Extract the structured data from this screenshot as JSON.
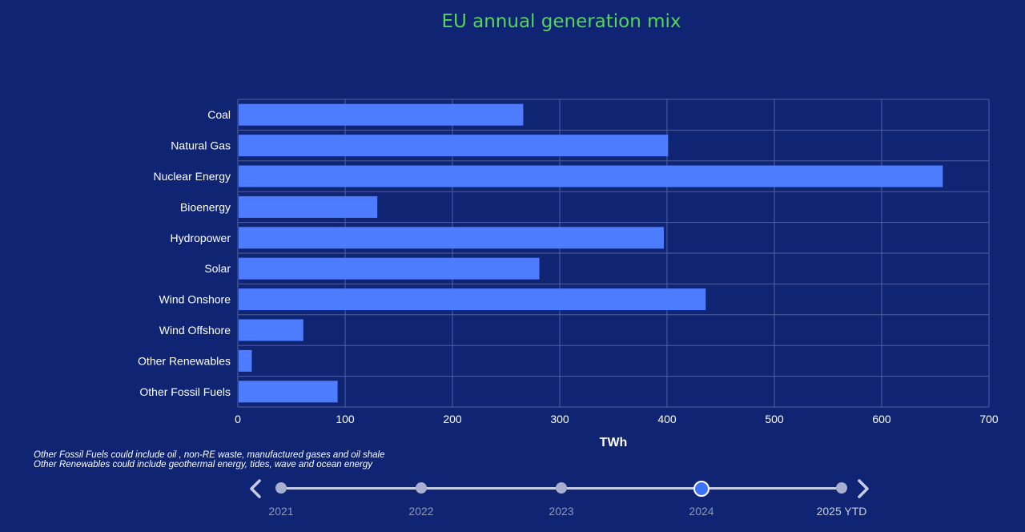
{
  "title": "EU annual generation mix",
  "chart_data": {
    "type": "bar",
    "orientation": "horizontal",
    "title": "EU annual generation mix",
    "xlabel": "TWh",
    "ylabel": "",
    "xlim": [
      0,
      700
    ],
    "xticks": [
      0,
      100,
      200,
      300,
      400,
      500,
      600,
      700
    ],
    "grid": true,
    "categories": [
      "Coal",
      "Natural Gas",
      "Nuclear Energy",
      "Bioenergy",
      "Hydropower",
      "Solar",
      "Wind Onshore",
      "Wind Offshore",
      "Other Renewables",
      "Other Fossil Fuels"
    ],
    "values": [
      266,
      401,
      657,
      130,
      397,
      281,
      436,
      61,
      13,
      93
    ],
    "bar_color": "#4d7cff"
  },
  "footnotes": [
    "Other Fossil Fuels could include oil , non-RE waste, manufactured gases and oil shale",
    "Other Renewables could include geothermal energy, tides, wave and ocean energy"
  ],
  "timeline": {
    "years": [
      "2021",
      "2022",
      "2023",
      "2024",
      "2025 YTD"
    ],
    "selected": "2024",
    "prev_icon": "chevron-left-icon",
    "next_icon": "chevron-right-icon"
  },
  "colors": {
    "background": "#0f2473",
    "title": "#58d35c",
    "bar": "#4d7cff",
    "active_dot": "#3d72ff"
  }
}
